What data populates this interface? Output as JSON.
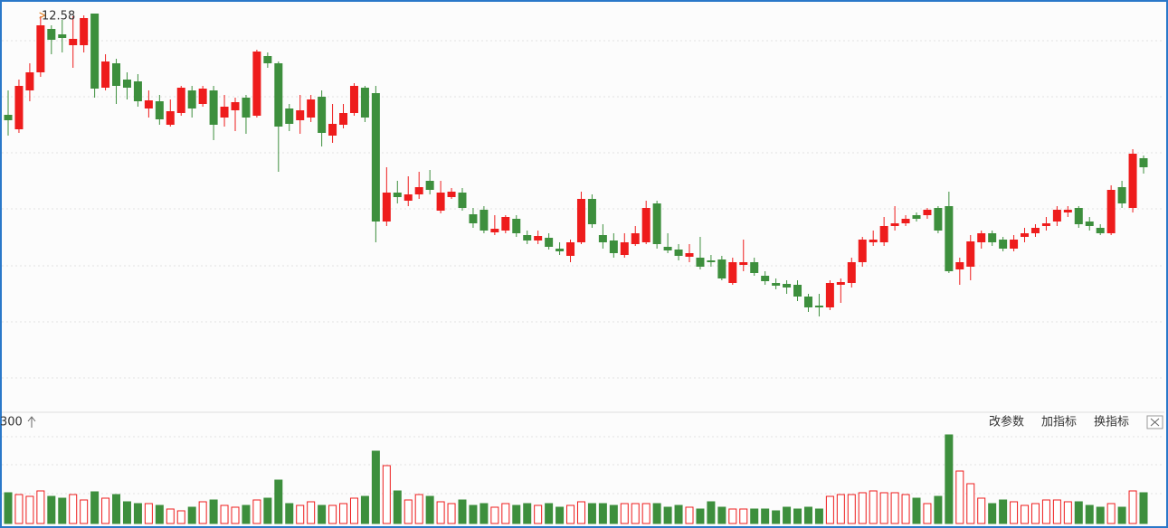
{
  "chart_data": {
    "type": "candlestick",
    "up_color": "#ee1c1c",
    "down_color": "#3d8f3d",
    "ylim": [
      8.18,
      12.73
    ],
    "vlim": [
      0,
      100
    ],
    "volume_label": "300",
    "toolbar": [
      "改参数",
      "加指标",
      "换指标"
    ],
    "open": [
      11.46,
      11.3,
      11.73,
      11.93,
      12.41,
      12.35,
      12.23,
      12.23,
      12.58,
      11.76,
      12.03,
      11.85,
      11.83,
      11.53,
      11.61,
      11.35,
      11.48,
      11.73,
      11.58,
      11.73,
      11.43,
      11.51,
      11.65,
      11.45,
      12.11,
      12.03,
      11.53,
      11.4,
      11.43,
      11.66,
      11.23,
      11.35,
      11.48,
      11.76,
      11.7,
      10.28,
      10.6,
      10.51,
      10.58,
      10.73,
      10.4,
      10.55,
      10.6,
      10.36,
      10.41,
      10.16,
      10.18,
      10.31,
      10.13,
      10.07,
      10.1,
      9.98,
      9.9,
      10.05,
      10.53,
      10.13,
      10.07,
      9.91,
      10.03,
      10.05,
      10.48,
      10.0,
      9.97,
      9.89,
      9.88,
      9.85,
      9.86,
      9.6,
      9.8,
      9.83,
      9.68,
      9.6,
      9.59,
      9.58,
      9.45,
      9.35,
      9.33,
      9.58,
      9.6,
      9.83,
      10.05,
      10.05,
      10.23,
      10.26,
      10.35,
      10.35,
      10.43,
      10.45,
      9.75,
      9.78,
      10.05,
      10.15,
      10.08,
      9.98,
      10.11,
      10.15,
      10.23,
      10.28,
      10.38,
      10.43,
      10.28,
      10.21,
      10.15,
      10.66,
      10.43,
      10.98
    ],
    "close": [
      11.4,
      11.78,
      11.93,
      12.45,
      12.29,
      12.31,
      12.3,
      12.53,
      11.75,
      12.05,
      11.78,
      11.76,
      11.61,
      11.62,
      11.41,
      11.5,
      11.76,
      11.53,
      11.75,
      11.35,
      11.55,
      11.6,
      11.43,
      12.16,
      12.03,
      11.33,
      11.36,
      11.51,
      11.63,
      11.26,
      11.36,
      11.48,
      11.78,
      11.43,
      10.28,
      10.6,
      10.55,
      10.58,
      10.66,
      10.63,
      10.6,
      10.61,
      10.43,
      10.26,
      10.18,
      10.2,
      10.33,
      10.15,
      10.07,
      10.12,
      10.0,
      9.95,
      10.05,
      10.53,
      10.25,
      10.05,
      9.93,
      10.05,
      10.15,
      10.43,
      10.03,
      9.96,
      9.9,
      9.93,
      9.78,
      9.83,
      9.65,
      9.83,
      9.83,
      9.71,
      9.62,
      9.57,
      9.55,
      9.45,
      9.33,
      9.33,
      9.6,
      9.61,
      9.83,
      10.08,
      10.08,
      10.23,
      10.26,
      10.31,
      10.31,
      10.41,
      10.18,
      9.73,
      9.83,
      10.06,
      10.15,
      10.05,
      9.98,
      10.08,
      10.15,
      10.21,
      10.26,
      10.41,
      10.41,
      10.25,
      10.23,
      10.15,
      10.63,
      10.48,
      11.03,
      10.88
    ],
    "high": [
      11.73,
      11.85,
      12.03,
      12.55,
      12.45,
      12.51,
      12.55,
      12.56,
      12.58,
      12.13,
      12.08,
      11.93,
      11.91,
      11.73,
      11.68,
      11.63,
      11.78,
      11.78,
      11.78,
      11.78,
      11.68,
      11.65,
      11.68,
      12.18,
      12.15,
      12.05,
      11.58,
      11.68,
      11.68,
      11.73,
      11.58,
      11.58,
      11.81,
      11.78,
      11.78,
      10.88,
      10.73,
      10.78,
      10.83,
      10.85,
      10.73,
      10.65,
      10.65,
      10.43,
      10.45,
      10.35,
      10.35,
      10.35,
      10.18,
      10.18,
      10.15,
      10.05,
      10.08,
      10.61,
      10.58,
      10.25,
      10.15,
      10.15,
      10.23,
      10.51,
      10.51,
      10.15,
      10.03,
      10.03,
      10.11,
      9.91,
      9.9,
      9.88,
      10.08,
      9.88,
      9.73,
      9.65,
      9.63,
      9.63,
      9.48,
      9.48,
      9.63,
      9.65,
      9.88,
      10.11,
      10.18,
      10.33,
      10.45,
      10.35,
      10.38,
      10.43,
      10.45,
      10.61,
      9.88,
      10.13,
      10.18,
      10.18,
      10.11,
      10.13,
      10.21,
      10.25,
      10.33,
      10.45,
      10.45,
      10.45,
      10.33,
      10.25,
      10.68,
      10.73,
      11.08,
      11.01
    ],
    "low": [
      11.23,
      11.26,
      11.61,
      11.88,
      12.13,
      12.15,
      11.98,
      12.15,
      11.65,
      11.73,
      11.58,
      11.63,
      11.55,
      11.43,
      11.35,
      11.33,
      11.45,
      11.43,
      11.55,
      11.18,
      11.33,
      11.28,
      11.25,
      11.43,
      11.98,
      10.83,
      11.28,
      11.25,
      11.38,
      11.11,
      11.15,
      11.31,
      11.45,
      11.38,
      10.05,
      10.23,
      10.48,
      10.45,
      10.53,
      10.58,
      10.37,
      10.53,
      10.4,
      10.21,
      10.15,
      10.13,
      10.15,
      10.11,
      10.03,
      10.03,
      9.97,
      9.91,
      9.83,
      10.03,
      10.21,
      9.98,
      9.88,
      9.88,
      10.01,
      10.03,
      9.98,
      9.93,
      9.85,
      9.83,
      9.75,
      9.78,
      9.63,
      9.58,
      9.73,
      9.68,
      9.58,
      9.53,
      9.48,
      9.4,
      9.28,
      9.23,
      9.3,
      9.38,
      9.55,
      9.78,
      10.01,
      10.01,
      10.18,
      10.23,
      10.28,
      10.31,
      10.15,
      9.71,
      9.58,
      9.63,
      9.98,
      10.01,
      9.95,
      9.95,
      10.05,
      10.11,
      10.18,
      10.23,
      10.33,
      10.21,
      10.18,
      10.13,
      10.13,
      10.43,
      10.38,
      10.81
    ],
    "volume": [
      34,
      32,
      30,
      36,
      30,
      28,
      32,
      26,
      35,
      28,
      32,
      24,
      22,
      22,
      20,
      16,
      14,
      18,
      24,
      26,
      20,
      18,
      20,
      26,
      28,
      48,
      22,
      20,
      24,
      20,
      20,
      22,
      28,
      30,
      80,
      64,
      36,
      26,
      32,
      30,
      24,
      22,
      26,
      20,
      22,
      18,
      22,
      20,
      22,
      20,
      22,
      18,
      20,
      24,
      22,
      22,
      20,
      22,
      22,
      22,
      22,
      18,
      20,
      18,
      16,
      24,
      18,
      16,
      16,
      16,
      16,
      14,
      18,
      16,
      18,
      16,
      30,
      32,
      32,
      34,
      36,
      34,
      34,
      32,
      28,
      22,
      30,
      98,
      58,
      44,
      28,
      22,
      26,
      24,
      20,
      22,
      26,
      26,
      24,
      24,
      20,
      18,
      22,
      18,
      36,
      34
    ]
  }
}
